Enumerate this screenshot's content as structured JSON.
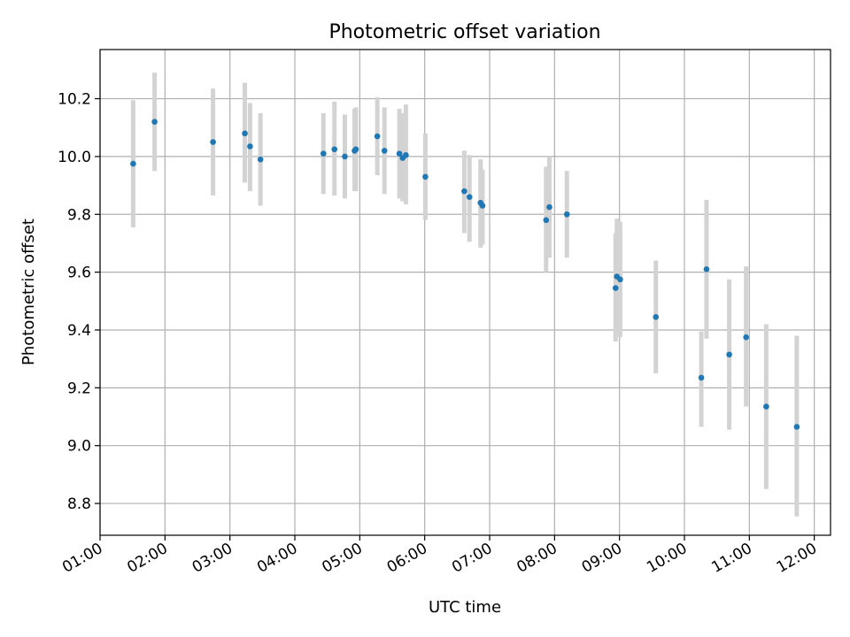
{
  "chart_data": {
    "type": "scatter",
    "title": "Photometric offset variation",
    "xlabel": "UTC time",
    "ylabel": "Photometric offset",
    "grid": true,
    "xlim": [
      1.0,
      12.25
    ],
    "ylim": [
      8.69,
      10.37
    ],
    "x_ticks": [
      {
        "value": 1,
        "label": "01:00"
      },
      {
        "value": 2,
        "label": "02:00"
      },
      {
        "value": 3,
        "label": "03:00"
      },
      {
        "value": 4,
        "label": "04:00"
      },
      {
        "value": 5,
        "label": "05:00"
      },
      {
        "value": 6,
        "label": "06:00"
      },
      {
        "value": 7,
        "label": "07:00"
      },
      {
        "value": 8,
        "label": "08:00"
      },
      {
        "value": 9,
        "label": "09:00"
      },
      {
        "value": 10,
        "label": "10:00"
      },
      {
        "value": 11,
        "label": "11:00"
      },
      {
        "value": 12,
        "label": "12:00"
      }
    ],
    "y_ticks": [
      {
        "value": 8.8,
        "label": "8.8"
      },
      {
        "value": 9.0,
        "label": "9.0"
      },
      {
        "value": 9.2,
        "label": "9.2"
      },
      {
        "value": 9.4,
        "label": "9.4"
      },
      {
        "value": 9.6,
        "label": "9.6"
      },
      {
        "value": 9.8,
        "label": "9.8"
      },
      {
        "value": 10.0,
        "label": "10.0"
      },
      {
        "value": 10.2,
        "label": "10.2"
      }
    ],
    "colors": {
      "point": "#1f77b4",
      "errorbar": "#d3d3d3"
    },
    "points": [
      {
        "x": 1.51,
        "y": 9.975,
        "ylo": 9.755,
        "yhi": 10.195
      },
      {
        "x": 1.84,
        "y": 10.12,
        "ylo": 9.95,
        "yhi": 10.29
      },
      {
        "x": 2.74,
        "y": 10.05,
        "ylo": 9.865,
        "yhi": 10.235
      },
      {
        "x": 3.23,
        "y": 10.08,
        "ylo": 9.91,
        "yhi": 10.255
      },
      {
        "x": 3.31,
        "y": 10.035,
        "ylo": 9.88,
        "yhi": 10.185
      },
      {
        "x": 3.47,
        "y": 9.99,
        "ylo": 9.83,
        "yhi": 10.15
      },
      {
        "x": 4.44,
        "y": 10.01,
        "ylo": 9.87,
        "yhi": 10.15
      },
      {
        "x": 4.61,
        "y": 10.025,
        "ylo": 9.865,
        "yhi": 10.19
      },
      {
        "x": 4.77,
        "y": 10.0,
        "ylo": 9.855,
        "yhi": 10.145
      },
      {
        "x": 4.92,
        "y": 10.02,
        "ylo": 9.88,
        "yhi": 10.165
      },
      {
        "x": 4.94,
        "y": 10.025,
        "ylo": 9.88,
        "yhi": 10.17
      },
      {
        "x": 5.27,
        "y": 10.07,
        "ylo": 9.935,
        "yhi": 10.205
      },
      {
        "x": 5.38,
        "y": 10.02,
        "ylo": 9.87,
        "yhi": 10.17
      },
      {
        "x": 5.61,
        "y": 10.01,
        "ylo": 9.855,
        "yhi": 10.165
      },
      {
        "x": 5.66,
        "y": 9.995,
        "ylo": 9.845,
        "yhi": 10.15
      },
      {
        "x": 5.71,
        "y": 10.005,
        "ylo": 9.835,
        "yhi": 10.18
      },
      {
        "x": 6.01,
        "y": 9.93,
        "ylo": 9.78,
        "yhi": 10.08
      },
      {
        "x": 6.61,
        "y": 9.88,
        "ylo": 9.735,
        "yhi": 10.02
      },
      {
        "x": 6.69,
        "y": 9.86,
        "ylo": 9.705,
        "yhi": 10.005
      },
      {
        "x": 6.86,
        "y": 9.84,
        "ylo": 9.685,
        "yhi": 9.99
      },
      {
        "x": 6.89,
        "y": 9.83,
        "ylo": 9.695,
        "yhi": 9.955
      },
      {
        "x": 7.87,
        "y": 9.78,
        "ylo": 9.6,
        "yhi": 9.965
      },
      {
        "x": 7.92,
        "y": 9.825,
        "ylo": 9.65,
        "yhi": 10.0
      },
      {
        "x": 8.19,
        "y": 9.8,
        "ylo": 9.65,
        "yhi": 9.95
      },
      {
        "x": 8.94,
        "y": 9.545,
        "ylo": 9.36,
        "yhi": 9.735
      },
      {
        "x": 8.96,
        "y": 9.585,
        "ylo": 9.395,
        "yhi": 9.785
      },
      {
        "x": 9.01,
        "y": 9.575,
        "ylo": 9.375,
        "yhi": 9.775
      },
      {
        "x": 9.56,
        "y": 9.445,
        "ylo": 9.25,
        "yhi": 9.64
      },
      {
        "x": 10.26,
        "y": 9.235,
        "ylo": 9.065,
        "yhi": 9.395
      },
      {
        "x": 10.34,
        "y": 9.61,
        "ylo": 9.37,
        "yhi": 9.85
      },
      {
        "x": 10.69,
        "y": 9.315,
        "ylo": 9.055,
        "yhi": 9.575
      },
      {
        "x": 10.95,
        "y": 9.375,
        "ylo": 9.135,
        "yhi": 9.62
      },
      {
        "x": 11.26,
        "y": 9.135,
        "ylo": 8.85,
        "yhi": 9.42
      },
      {
        "x": 11.73,
        "y": 9.065,
        "ylo": 8.755,
        "yhi": 9.38
      }
    ]
  }
}
